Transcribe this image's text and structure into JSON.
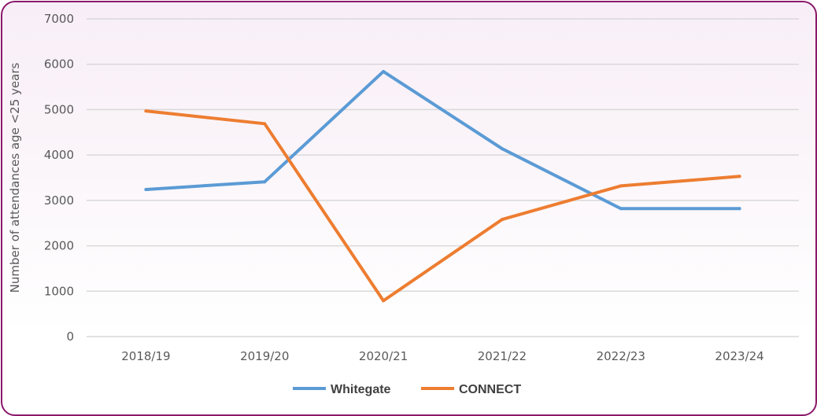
{
  "chart_data": {
    "type": "line",
    "title": "",
    "xlabel": "",
    "ylabel": "Number of attendances age <25 years",
    "categories": [
      "2018/19",
      "2019/20",
      "2020/21",
      "2021/22",
      "2022/23",
      "2023/24"
    ],
    "ylim": [
      0,
      7000
    ],
    "yticks": [
      0,
      1000,
      2000,
      3000,
      4000,
      5000,
      6000,
      7000
    ],
    "grid": true,
    "legend": "bottom",
    "series": [
      {
        "name": "Whitegate",
        "color": "#5b9bd5",
        "values": [
          3240,
          3410,
          5840,
          4140,
          2820,
          2820
        ]
      },
      {
        "name": "CONNECT",
        "color": "#ed7d31",
        "values": [
          4970,
          4690,
          790,
          2580,
          3320,
          3530
        ]
      }
    ]
  }
}
